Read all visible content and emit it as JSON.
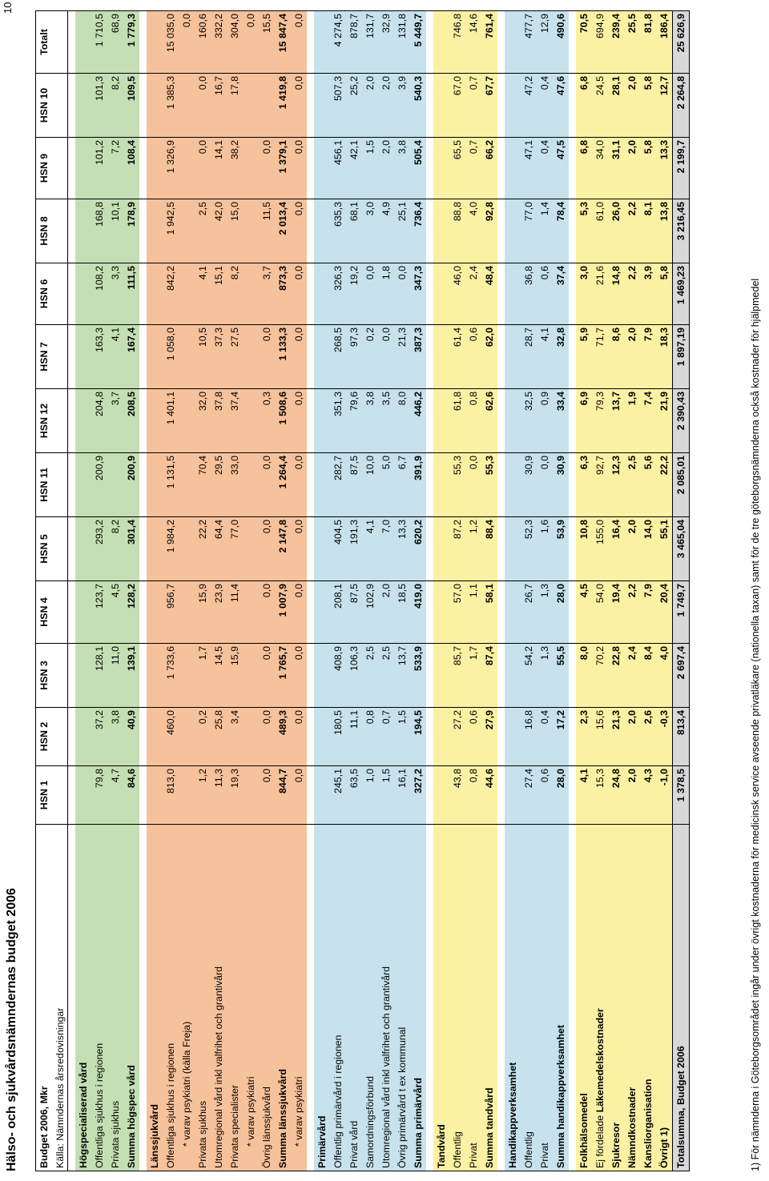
{
  "page_title": "Hälso- och sjukvårdsnämndernas budget 2006",
  "page_number": "10",
  "footnote": "1) För nämnderna i Göteborgsområdet ingår under övrigt kostnaderna för medicinsk service avseende privatläkare (nationella taxan) samt för de tre göteborgsnämnderna också kostnader för hjälpmedel",
  "header": {
    "title": "Budget 2006, Mkr",
    "source": "Källa: Nämndernas årsredovisningar",
    "columns": [
      "HSN 1",
      "HSN 2",
      "HSN 3",
      "HSN 4",
      "HSN 5",
      "HSN 11",
      "HSN 12",
      "HSN 7",
      "HSN 6",
      "HSN 8",
      "HSN 9",
      "HSN 10",
      "Totalt"
    ]
  },
  "colors": {
    "green": "#c4dfb3",
    "orange": "#f6c29c",
    "cyan": "#c7e2ec",
    "yellow": "#fbf1a3",
    "grey": "#d8d8d8"
  },
  "rows": {
    "hogspec_heading": "Högspecialiserad vård",
    "offentliga_sjukhus": {
      "label": "Offentliga sjukhus i regionen",
      "values": [
        "79,8",
        "37,2",
        "128,1",
        "123,7",
        "293,2",
        "200,9",
        "204,8",
        "163,3",
        "108,2",
        "168,8",
        "101,2",
        "101,3",
        "1 710,5"
      ]
    },
    "privata_sjukhus_hs": {
      "label": "Privata sjukhus",
      "values": [
        "4,7",
        "3,8",
        "11,0",
        "4,5",
        "8,2",
        "",
        "3,7",
        "4,1",
        "3,3",
        "10,1",
        "7,2",
        "8,2",
        "68,9"
      ]
    },
    "summa_hogspec": {
      "label": "Summa högspec vård",
      "values": [
        "84,6",
        "40,9",
        "139,1",
        "128,2",
        "301,4",
        "200,9",
        "208,5",
        "167,4",
        "111,5",
        "178,9",
        "108,4",
        "109,5",
        "1 779,3"
      ]
    },
    "lans_heading": "Länssjukvård",
    "lans_off_sjukhus": {
      "label": "Offentliga sjukhus i regionen",
      "values": [
        "813,0",
        "460,0",
        "1 733,6",
        "956,7",
        "1 984,2",
        "1 131,5",
        "1 401,1",
        "1 058,0",
        "842,2",
        "1 942,5",
        "1 326,9",
        "1 385,3",
        "15 035,0"
      ]
    },
    "lans_varav_psyk_freja": {
      "label": "* varav psykiatri (källa Freja)",
      "values": [
        "",
        "",
        "",
        "",
        "",
        "",
        "",
        "",
        "",
        "",
        "",
        "",
        "0,0"
      ]
    },
    "lans_privata_sjukhus": {
      "label": "Privata sjukhus",
      "values": [
        "1,2",
        "0,2",
        "1,7",
        "15,9",
        "22,2",
        "70,4",
        "32,0",
        "10,5",
        "4,1",
        "2,5",
        "0,0",
        "0,0",
        "160,6"
      ]
    },
    "lans_utomregional": {
      "label": "Utomregional vård inkl valfrihet och grantivård",
      "values": [
        "11,3",
        "25,8",
        "14,5",
        "23,9",
        "64,4",
        "29,5",
        "37,8",
        "37,3",
        "15,1",
        "42,0",
        "14,1",
        "16,7",
        "332,2"
      ]
    },
    "lans_priv_spec": {
      "label": "Privata specialister",
      "values": [
        "19,3",
        "3,4",
        "15,9",
        "11,4",
        "77,0",
        "33,0",
        "37,4",
        "27,5",
        "8,2",
        "15,0",
        "38,2",
        "17,8",
        "304,0"
      ]
    },
    "lans_varav_psyk": {
      "label": "* varav psykiatri",
      "values": [
        "",
        "",
        "",
        "",
        "",
        "",
        "",
        "",
        "",
        "",
        "",
        "",
        "0,0"
      ]
    },
    "lans_ovrig": {
      "label": "Övrig länssjukvård",
      "values": [
        "0,0",
        "0,0",
        "0,0",
        "0,0",
        "0,0",
        "0,0",
        "0,3",
        "0,0",
        "3,7",
        "11,5",
        "0,0",
        "",
        "15,5"
      ]
    },
    "summa_lans": {
      "label": "Summa länssjukvård",
      "values": [
        "844,7",
        "489,3",
        "1 765,7",
        "1 007,9",
        "2 147,8",
        "1 264,4",
        "1 508,6",
        "1 133,3",
        "873,3",
        "2 013,4",
        "1 379,1",
        "1 419,8",
        "15 847,4"
      ]
    },
    "summa_lans_psyk": {
      "label": "* varav psykiatri",
      "values": [
        "0,0",
        "0,0",
        "0,0",
        "0,0",
        "0,0",
        "0,0",
        "0,0",
        "0,0",
        "0,0",
        "0,0",
        "0,0",
        "0,0",
        "0,0"
      ]
    },
    "prim_heading": "Primärvård",
    "prim_off": {
      "label": "Offentlig primärvård i regionen",
      "values": [
        "245,1",
        "180,5",
        "408,9",
        "208,1",
        "404,5",
        "282,7",
        "351,3",
        "268,5",
        "326,3",
        "635,3",
        "456,1",
        "507,3",
        "4 274,5"
      ]
    },
    "prim_priv": {
      "label": "Privat vård",
      "values": [
        "63,5",
        "11,1",
        "106,3",
        "87,5",
        "191,3",
        "87,5",
        "79,6",
        "97,3",
        "19,2",
        "68,1",
        "42,1",
        "25,2",
        "878,7"
      ]
    },
    "prim_samord": {
      "label": "Samordningsförbund",
      "values": [
        "1,0",
        "0,8",
        "2,5",
        "102,9",
        "4,1",
        "10,0",
        "3,8",
        "0,2",
        "0,0",
        "3,0",
        "1,5",
        "2,0",
        "131,7"
      ]
    },
    "prim_utomreg": {
      "label": "Utomregional vård inkl valfrihet och grantivård",
      "values": [
        "1,5",
        "0,7",
        "2,5",
        "2,0",
        "7,0",
        "5,0",
        "3,5",
        "0,0",
        "1,8",
        "4,9",
        "2,0",
        "2,0",
        "32,9"
      ]
    },
    "prim_ovrig": {
      "label": "Övrig primärvård t ex kommunal",
      "values": [
        "16,1",
        "1,5",
        "13,7",
        "18,5",
        "13,3",
        "6,7",
        "8,0",
        "21,3",
        "0,0",
        "25,1",
        "3,8",
        "3,9",
        "131,8"
      ]
    },
    "summa_prim": {
      "label": "Summa primärvård",
      "values": [
        "327,2",
        "194,5",
        "533,9",
        "419,0",
        "620,2",
        "391,9",
        "446,2",
        "387,3",
        "347,3",
        "736,4",
        "505,4",
        "540,3",
        "5 449,7"
      ]
    },
    "tand_heading": "Tandvård",
    "tand_off": {
      "label": "Offentlig",
      "values": [
        "43,8",
        "27,2",
        "85,7",
        "57,0",
        "87,2",
        "55,3",
        "61,8",
        "61,4",
        "46,0",
        "88,8",
        "65,5",
        "67,0",
        "746,8"
      ]
    },
    "tand_priv": {
      "label": "Privat",
      "values": [
        "0,8",
        "0,6",
        "1,7",
        "1,1",
        "1,2",
        "0,0",
        "0,8",
        "0,6",
        "2,4",
        "4,0",
        "0,7",
        "0,7",
        "14,6"
      ]
    },
    "summa_tand": {
      "label": "Summa tandvård",
      "values": [
        "44,6",
        "27,9",
        "87,4",
        "58,1",
        "88,4",
        "55,3",
        "62,6",
        "62,0",
        "48,4",
        "92,8",
        "66,2",
        "67,7",
        "761,4"
      ]
    },
    "handi_heading": "Handikappverksamhet",
    "handi_off": {
      "label": "Offentlig",
      "values": [
        "27,4",
        "16,8",
        "54,2",
        "26,7",
        "52,3",
        "30,9",
        "32,5",
        "28,7",
        "36,8",
        "77,0",
        "47,1",
        "47,2",
        "477,7"
      ]
    },
    "handi_priv": {
      "label": "Privat",
      "values": [
        "0,6",
        "0,4",
        "1,3",
        "1,3",
        "1,6",
        "0,0",
        "0,9",
        "4,1",
        "0,6",
        "1,4",
        "0,4",
        "0,4",
        "12,9"
      ]
    },
    "summa_handi": {
      "label": "Summa handikappverksamhet",
      "values": [
        "28,0",
        "17,2",
        "55,5",
        "28,0",
        "53,9",
        "30,9",
        "33,4",
        "32,8",
        "37,4",
        "78,4",
        "47,5",
        "47,6",
        "490,6"
      ]
    },
    "folkhalso": {
      "label": "Folkhälsomedel",
      "values": [
        "4,1",
        "2,3",
        "8,0",
        "4,5",
        "10,8",
        "6,3",
        "6,9",
        "5,9",
        "3,0",
        "5,3",
        "6,8",
        "6,8",
        "70,5"
      ]
    },
    "lakemedel": {
      "label_prefix": "Ej fördelade ",
      "label_bold": "Läkemedelskostnader",
      "values": [
        "15,3",
        "15,6",
        "70,2",
        "54,0",
        "155,0",
        "92,7",
        "79,3",
        "71,7",
        "21,6",
        "61,0",
        "34,0",
        "24,5",
        "694,9"
      ]
    },
    "sjukresor": {
      "label": "Sjukresor",
      "values": [
        "24,8",
        "21,3",
        "22,8",
        "19,4",
        "16,4",
        "12,3",
        "13,7",
        "8,6",
        "14,8",
        "26,0",
        "31,1",
        "28,1",
        "239,4"
      ]
    },
    "namnd": {
      "label": "Nämndkostnader",
      "values": [
        "2,0",
        "2,0",
        "2,4",
        "2,2",
        "2,0",
        "2,5",
        "1,9",
        "2,0",
        "2,2",
        "2,2",
        "2,0",
        "2,0",
        "25,5"
      ]
    },
    "kansli": {
      "label": "Kansliorganisation",
      "values": [
        "4,3",
        "2,6",
        "8,4",
        "7,9",
        "14,0",
        "5,6",
        "7,4",
        "7,9",
        "3,9",
        "8,1",
        "5,8",
        "5,8",
        "81,8"
      ]
    },
    "ovrigt": {
      "label": "Övrigt 1)",
      "values": [
        "-1,0",
        "-0,3",
        "4,0",
        "20,4",
        "55,1",
        "22,2",
        "21,9",
        "18,3",
        "5,8",
        "13,8",
        "13,3",
        "12,7",
        "186,4"
      ]
    },
    "totalsumma": {
      "label": "Totalsumma, Budget 2006",
      "values": [
        "1 378,5",
        "813,4",
        "2 697,4",
        "1 749,7",
        "3 465,04",
        "2 085,01",
        "2 390,43",
        "1 897,19",
        "1 469,23",
        "3 216,45",
        "2 199,7",
        "2 264,8",
        "25 626,9"
      ]
    }
  }
}
